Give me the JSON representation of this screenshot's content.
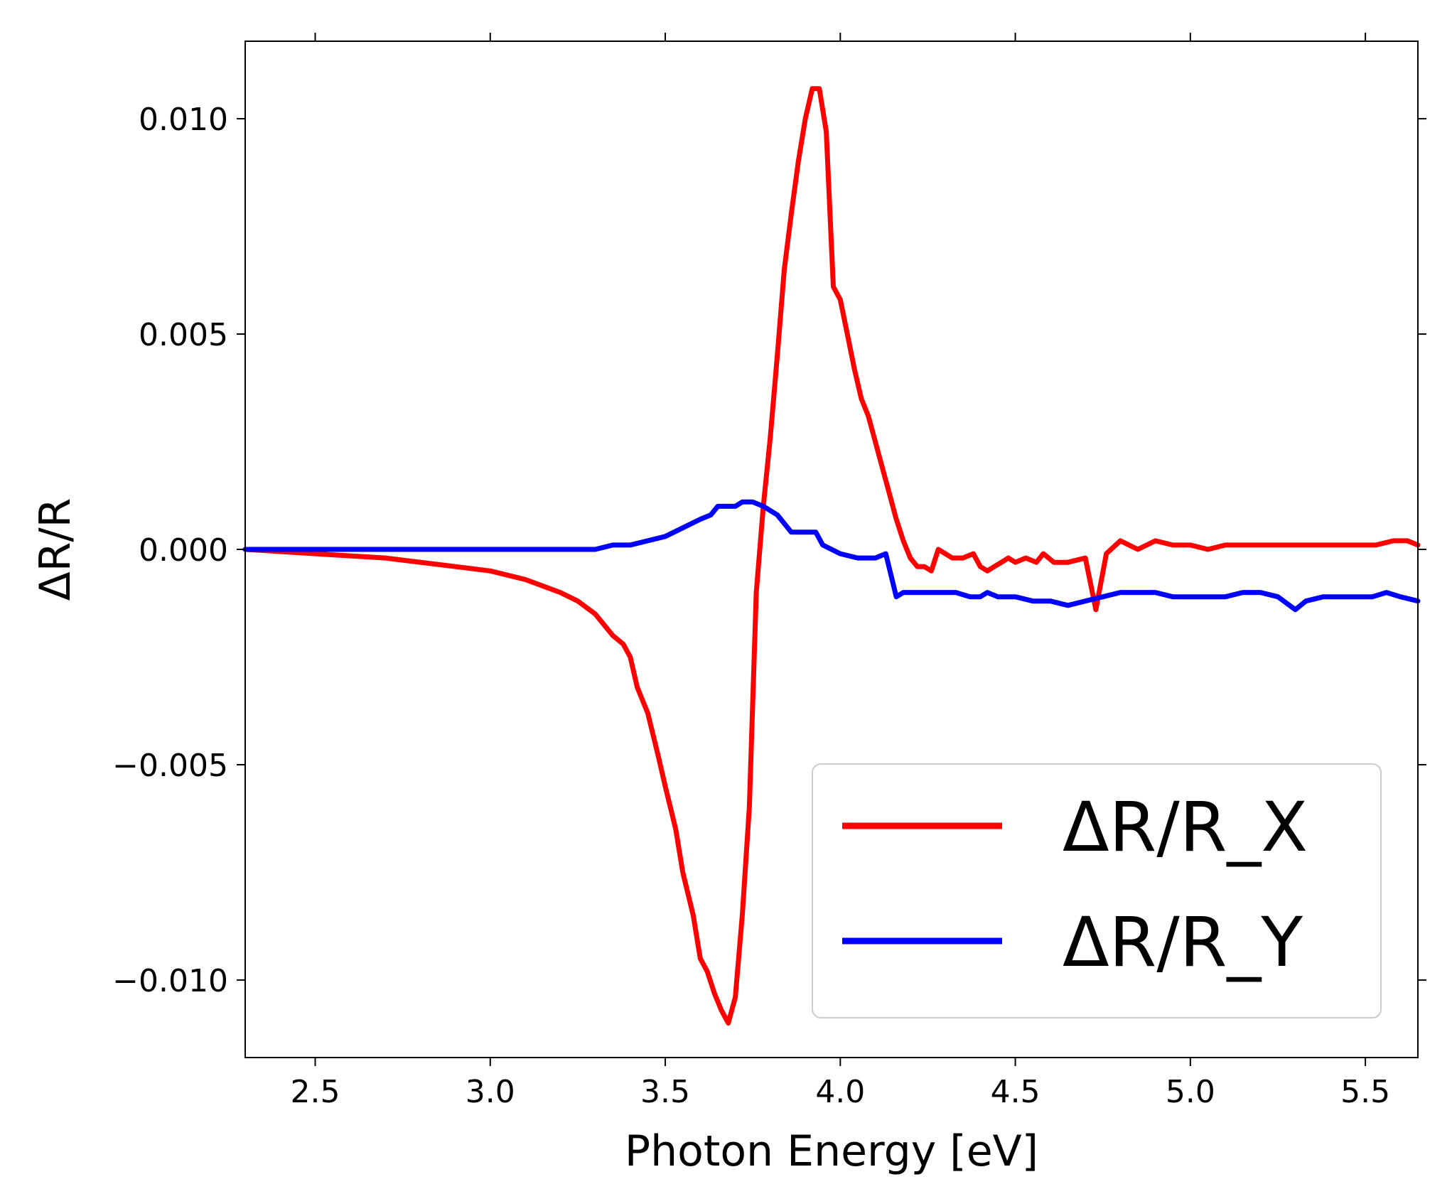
{
  "chart_data": {
    "type": "line",
    "title": "",
    "xlabel": "Photon Energy [eV]",
    "ylabel": "ΔR/R",
    "xlim": [
      2.3,
      5.65
    ],
    "ylim": [
      -0.0118,
      0.0118
    ],
    "xticks": [
      2.5,
      3.0,
      3.5,
      4.0,
      4.5,
      5.0,
      5.5
    ],
    "xtick_labels": [
      "2.5",
      "3.0",
      "3.5",
      "4.0",
      "4.5",
      "5.0",
      "5.5"
    ],
    "yticks": [
      0.01,
      0.005,
      0.0,
      -0.005,
      -0.01
    ],
    "ytick_labels": [
      "0.010",
      "0.005",
      "0.000",
      "−0.005",
      "−0.010"
    ],
    "grid": false,
    "legend_position": "bottom-right",
    "series": [
      {
        "name": "ΔR/R_X",
        "color": "#ff0000",
        "x": [
          2.3,
          2.5,
          2.7,
          2.9,
          3.0,
          3.1,
          3.2,
          3.25,
          3.3,
          3.35,
          3.38,
          3.4,
          3.42,
          3.45,
          3.48,
          3.5,
          3.53,
          3.55,
          3.58,
          3.6,
          3.62,
          3.64,
          3.66,
          3.68,
          3.7,
          3.72,
          3.74,
          3.76,
          3.78,
          3.8,
          3.82,
          3.84,
          3.86,
          3.88,
          3.9,
          3.92,
          3.94,
          3.96,
          3.98,
          4.0,
          4.02,
          4.04,
          4.06,
          4.08,
          4.1,
          4.12,
          4.14,
          4.16,
          4.18,
          4.2,
          4.22,
          4.24,
          4.26,
          4.28,
          4.3,
          4.32,
          4.35,
          4.38,
          4.4,
          4.42,
          4.44,
          4.46,
          4.48,
          4.5,
          4.53,
          4.56,
          4.58,
          4.61,
          4.65,
          4.7,
          4.73,
          4.76,
          4.8,
          4.85,
          4.9,
          4.95,
          5.0,
          5.05,
          5.1,
          5.15,
          5.2,
          5.25,
          5.28,
          5.33,
          5.38,
          5.42,
          5.46,
          5.5,
          5.53,
          5.58,
          5.62,
          5.65
        ],
        "y": [
          0.0,
          -0.0001,
          -0.0002,
          -0.0004,
          -0.0005,
          -0.0007,
          -0.001,
          -0.0012,
          -0.0015,
          -0.002,
          -0.0022,
          -0.0025,
          -0.0032,
          -0.0038,
          -0.0048,
          -0.0055,
          -0.0065,
          -0.0075,
          -0.0085,
          -0.0095,
          -0.0098,
          -0.0103,
          -0.0107,
          -0.011,
          -0.0104,
          -0.0085,
          -0.006,
          -0.001,
          0.001,
          0.0026,
          0.0045,
          0.0065,
          0.0078,
          0.009,
          0.01,
          0.0107,
          0.0107,
          0.0097,
          0.0061,
          0.0058,
          0.005,
          0.0042,
          0.0035,
          0.0031,
          0.0025,
          0.0019,
          0.0013,
          0.0007,
          0.0002,
          -0.0002,
          -0.0004,
          -0.0004,
          -0.0005,
          0.0,
          -0.0001,
          -0.0002,
          -0.0002,
          -0.0001,
          -0.0004,
          -0.0005,
          -0.0004,
          -0.0003,
          -0.0002,
          -0.0003,
          -0.0002,
          -0.0003,
          -0.0001,
          -0.0003,
          -0.0003,
          -0.0002,
          -0.0014,
          -0.0001,
          0.0002,
          0.0,
          0.0002,
          0.0001,
          0.0001,
          0.0,
          0.0001,
          0.0001,
          0.0001,
          0.0001,
          0.0001,
          0.0001,
          0.0001,
          0.0001,
          0.0001,
          0.0001,
          0.0001,
          0.0002,
          0.0002,
          0.0001
        ]
      },
      {
        "name": "ΔR/R_Y",
        "color": "#0000ff",
        "x": [
          2.3,
          2.6,
          2.9,
          3.1,
          3.2,
          3.3,
          3.35,
          3.4,
          3.45,
          3.5,
          3.55,
          3.6,
          3.63,
          3.65,
          3.7,
          3.72,
          3.75,
          3.78,
          3.82,
          3.86,
          3.89,
          3.93,
          3.95,
          4.0,
          4.05,
          4.1,
          4.13,
          4.16,
          4.18,
          4.2,
          4.25,
          4.3,
          4.33,
          4.37,
          4.4,
          4.42,
          4.45,
          4.5,
          4.55,
          4.6,
          4.65,
          4.7,
          4.75,
          4.8,
          4.85,
          4.9,
          4.95,
          5.0,
          5.05,
          5.1,
          5.15,
          5.2,
          5.25,
          5.3,
          5.33,
          5.38,
          5.43,
          5.48,
          5.52,
          5.56,
          5.6,
          5.65
        ],
        "y": [
          0.0,
          0.0,
          0.0,
          0.0,
          0.0,
          0.0,
          0.0001,
          0.0001,
          0.0002,
          0.0003,
          0.0005,
          0.0007,
          0.0008,
          0.001,
          0.001,
          0.0011,
          0.0011,
          0.001,
          0.0008,
          0.0004,
          0.0004,
          0.0004,
          0.0001,
          -0.0001,
          -0.0002,
          -0.0002,
          -0.0001,
          -0.0011,
          -0.001,
          -0.001,
          -0.001,
          -0.001,
          -0.001,
          -0.0011,
          -0.0011,
          -0.001,
          -0.0011,
          -0.0011,
          -0.0012,
          -0.0012,
          -0.0013,
          -0.0012,
          -0.0011,
          -0.001,
          -0.001,
          -0.001,
          -0.0011,
          -0.0011,
          -0.0011,
          -0.0011,
          -0.001,
          -0.001,
          -0.0011,
          -0.0014,
          -0.0012,
          -0.0011,
          -0.0011,
          -0.0011,
          -0.0011,
          -0.001,
          -0.0011,
          -0.0012
        ]
      }
    ]
  }
}
